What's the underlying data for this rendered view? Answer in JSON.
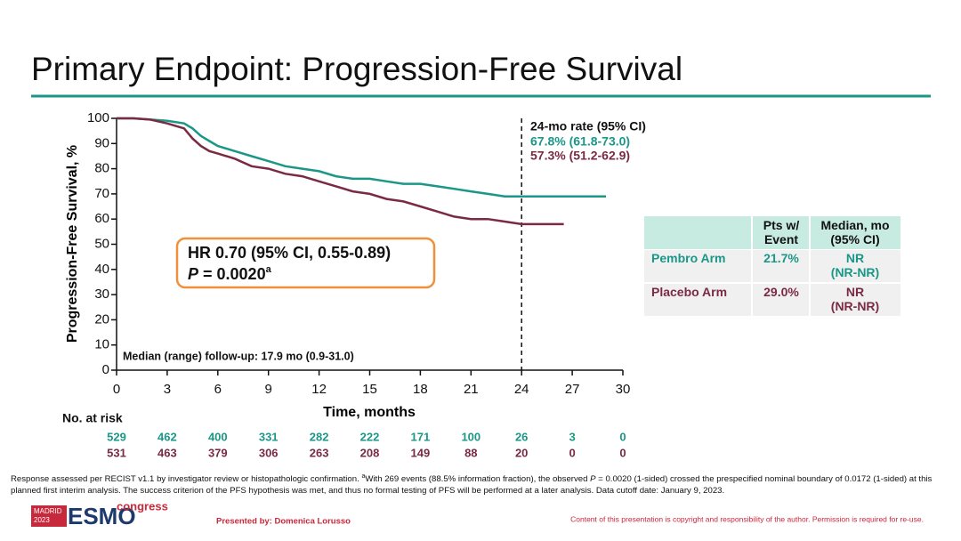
{
  "title": "Primary Endpoint: Progression-Free Survival",
  "chart_data": {
    "type": "line",
    "ylabel": "Progression-Free Survival, %",
    "xlabel": "Time, months",
    "xlim": [
      0,
      30
    ],
    "xticks": [
      0,
      3,
      6,
      9,
      12,
      15,
      18,
      21,
      24,
      27,
      30
    ],
    "ylim": [
      0,
      100
    ],
    "yticks": [
      0,
      10,
      20,
      30,
      40,
      50,
      60,
      70,
      80,
      90,
      100
    ],
    "series": [
      {
        "color": "#1a9787",
        "x": [
          0,
          1,
          2,
          3,
          4,
          4.5,
          5,
          5.5,
          6,
          7,
          8,
          9,
          10,
          11,
          12,
          13,
          14,
          15,
          16,
          17,
          18,
          19,
          20,
          21,
          22,
          23,
          24,
          25,
          26,
          27,
          28,
          29
        ],
        "values": [
          100,
          100,
          99.5,
          99,
          98,
          96,
          93,
          91,
          89,
          87,
          85,
          83,
          81,
          80,
          79,
          77,
          76,
          76,
          75,
          74,
          74,
          73,
          72,
          71,
          70,
          69,
          69,
          69,
          69,
          69,
          69,
          69
        ]
      },
      {
        "color": "#7a2a43",
        "x": [
          0,
          1,
          2,
          3,
          4,
          4.5,
          5,
          5.5,
          6,
          7,
          8,
          9,
          10,
          11,
          12,
          13,
          14,
          15,
          16,
          17,
          18,
          19,
          20,
          21,
          22,
          23,
          24,
          25,
          26,
          26.5
        ],
        "values": [
          100,
          100,
          99.5,
          98,
          96,
          92,
          89,
          87,
          86,
          84,
          81,
          80,
          78,
          77,
          75,
          73,
          71,
          70,
          68,
          67,
          65,
          63,
          61,
          60,
          60,
          59,
          58,
          58,
          58,
          58
        ]
      }
    ],
    "reference_x": 24,
    "rate_header": "24-mo rate (95% CI)",
    "rate_labels": [
      "67.8% (61.8-73.0)",
      "57.3% (51.2-62.9)"
    ],
    "hr_text": "HR 0.70 (95% CI, 0.55-0.89)",
    "p_label": "P",
    "p_value": "= 0.0020",
    "p_note": "a",
    "followup": "Median (range) follow-up: 17.9 mo (0.9-31.0)",
    "at_risk_label": "No. at risk",
    "at_risk": [
      [
        529,
        462,
        400,
        331,
        282,
        222,
        171,
        100,
        26,
        3,
        0
      ],
      [
        531,
        463,
        379,
        306,
        263,
        208,
        149,
        88,
        20,
        0,
        0
      ]
    ]
  },
  "table": {
    "headers": [
      "Pts w/\nEvent",
      "Median, mo\n(95% CI)"
    ],
    "rows": [
      [
        "Pembro Arm",
        "21.7%",
        "NR\n(NR-NR)"
      ],
      [
        "Placebo Arm",
        "29.0%",
        "NR\n(NR-NR)"
      ]
    ]
  },
  "footnote": [
    "Response assessed per RECIST v1.1 by investigator review or histopathologic confirmation. ",
    "a",
    "With 269 events (88.5% information fraction), the observed ",
    "P",
    " = 0.0020 (1-sided) crossed the prespecified nominal boundary of 0.0172 (1-sided) at this planned first interim analysis. The success criterion of the PFS hypothesis was met, and thus no formal testing of PFS will be performed at a later analysis. Data cutoff date: January 9, 2023."
  ],
  "logo": {
    "city": "MADRID",
    "year": "2023",
    "name": "ESMO",
    "suffix": "congress"
  },
  "presenter": "Presented by: Domenica Lorusso",
  "copyright": "Content of this presentation is copyright and responsibility of the author. Permission is required for re-use."
}
